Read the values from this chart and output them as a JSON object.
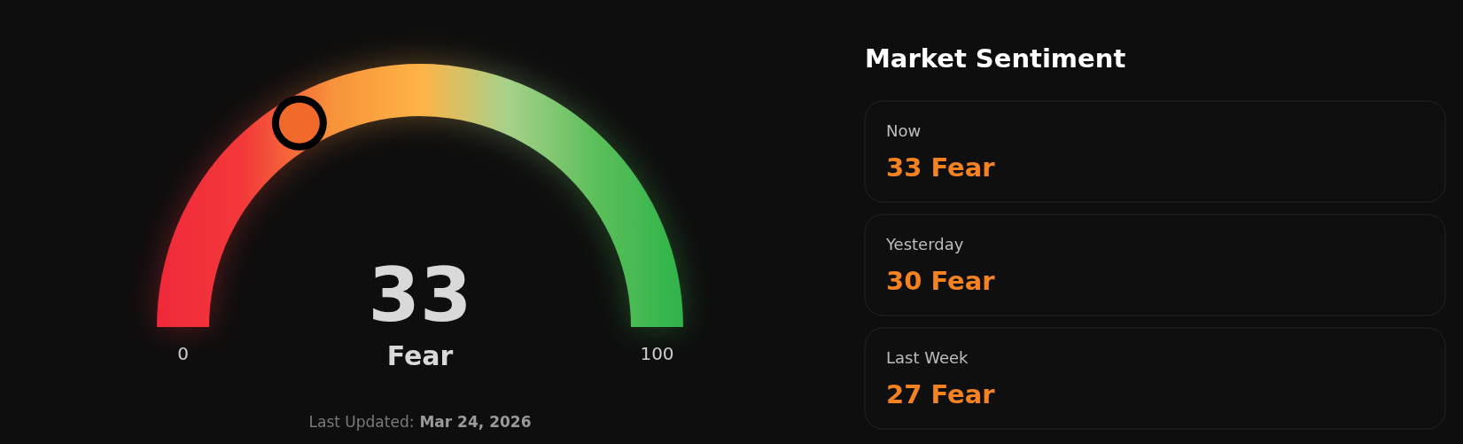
{
  "chart_data": [
    {
      "type": "other",
      "categories": [
        "Fear"
      ],
      "values": [
        33
      ],
      "value_labels": [
        "33"
      ],
      "annotations": [
        "0",
        "100",
        "Last Updated:",
        "Mar 24, 2026"
      ]
    },
    {
      "type": "other",
      "title": "Market Sentiment",
      "annotations": [
        "Now",
        "33 Fear",
        "Yesterday",
        "30 Fear",
        "Last Week",
        "27 Fear"
      ]
    }
  ]
}
